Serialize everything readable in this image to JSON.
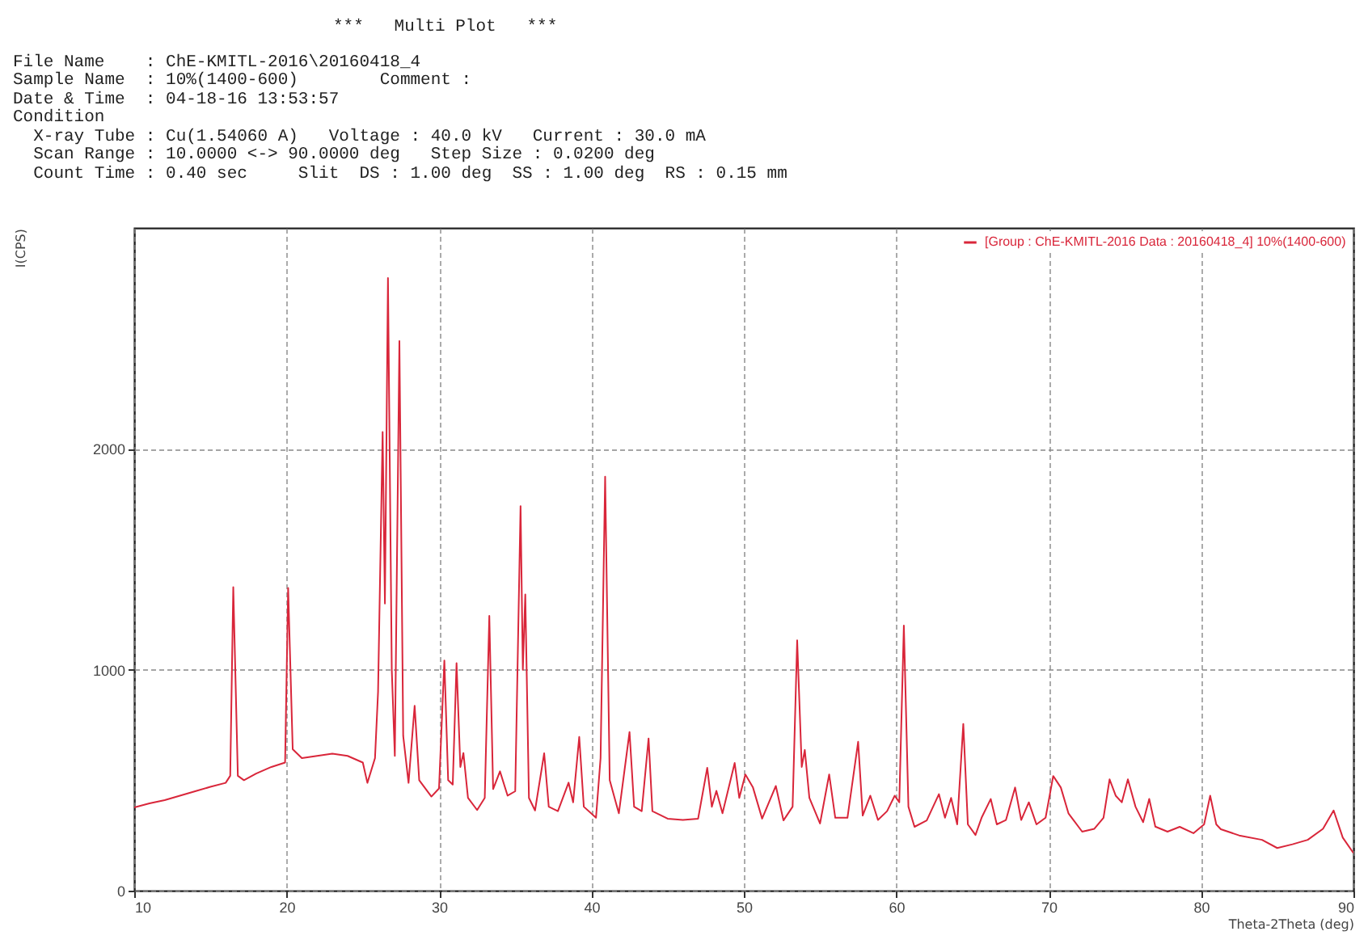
{
  "chart_data": {
    "type": "line",
    "title": "***   Multi Plot   ***",
    "xlabel": "Theta-2Theta (deg)",
    "ylabel": "I(CPS)",
    "annotations": [
      "File Name    : ChE-KMITL-2016\\20160418_4",
      "Sample Name  : 10%(1400-600)        Comment :",
      "Date & Time  : 04-18-16 13:53:57",
      "Condition",
      "  X-ray Tube : Cu(1.54060 A)   Voltage : 40.0 kV   Current : 30.0 mA",
      "  Scan Range : 10.0000 <-> 90.0000 deg   Step Size : 0.0200 deg",
      "  Count Time : 0.40 sec     Slit  DS : 1.00 deg  SS : 1.00 deg  RS : 0.15 mm"
    ],
    "x": [
      10,
      11,
      12,
      13,
      14,
      15,
      16,
      16.3,
      16.5,
      16.8,
      17.2,
      18,
      19,
      19.9,
      20.1,
      20.4,
      21,
      22,
      23,
      24,
      25,
      25.3,
      25.8,
      26.0,
      26.3,
      26.45,
      26.65,
      26.9,
      27.1,
      27.4,
      27.65,
      28.0,
      28.4,
      28.7,
      29.5,
      30.0,
      30.35,
      30.6,
      30.9,
      31.15,
      31.4,
      31.6,
      31.9,
      32.5,
      33.0,
      33.3,
      33.55,
      34.0,
      34.5,
      35.0,
      35.35,
      35.5,
      35.66,
      35.9,
      36.3,
      36.9,
      37.2,
      37.8,
      38.5,
      38.8,
      39.2,
      39.5,
      40.3,
      40.6,
      40.9,
      41.2,
      41.8,
      42.5,
      42.8,
      43.3,
      43.75,
      44.0,
      45,
      46,
      47,
      47.6,
      47.9,
      48.2,
      48.6,
      49.4,
      49.7,
      50.1,
      50.6,
      51.2,
      52.1,
      52.6,
      53.2,
      53.5,
      53.8,
      54.0,
      54.3,
      55.0,
      55.6,
      56.0,
      56.8,
      57.5,
      57.8,
      58.3,
      58.8,
      59.4,
      59.9,
      60.2,
      60.5,
      60.8,
      61.2,
      62,
      62.8,
      63.2,
      63.6,
      64.0,
      64.4,
      64.7,
      65.2,
      65.6,
      66.2,
      66.6,
      67.2,
      67.8,
      68.2,
      68.7,
      69.2,
      69.8,
      70.3,
      70.8,
      71.3,
      72.2,
      73,
      73.6,
      74.0,
      74.4,
      74.8,
      75.2,
      75.7,
      76.2,
      76.6,
      77.0,
      77.8,
      78.6,
      79.5,
      80.2,
      80.6,
      81.0,
      81.3,
      82.5,
      84,
      85,
      86,
      87,
      88,
      88.7,
      89.3,
      90
    ],
    "series": [
      {
        "name": "[Group : ChE-KMITL-2016 Data : 20160418_4] 10%(1400-600)",
        "color": "#d9263a",
        "values": [
          377,
          395,
          410,
          430,
          450,
          470,
          488,
          520,
          1374,
          520,
          500,
          530,
          560,
          580,
          1370,
          640,
          600,
          610,
          620,
          610,
          580,
          488,
          600,
          900,
          2076,
          1300,
          2773,
          1000,
          610,
          2488,
          700,
          488,
          837,
          500,
          426,
          463,
          1042,
          500,
          480,
          1030,
          560,
          623,
          420,
          365,
          420,
          1244,
          460,
          540,
          430,
          450,
          1741,
          1000,
          1341,
          420,
          363,
          622,
          380,
          360,
          489,
          400,
          696,
          380,
          330,
          600,
          1874,
          500,
          350,
          718,
          380,
          360,
          689,
          360,
          326,
          320,
          326,
          556,
          380,
          452,
          350,
          578,
          420,
          526,
          467,
          326,
          474,
          318,
          380,
          1133,
          560,
          637,
          420,
          304,
          526,
          330,
          330,
          674,
          340,
          430,
          320,
          360,
          430,
          400,
          1200,
          380,
          289,
          318,
          437,
          330,
          420,
          300,
          755,
          300,
          252,
          330,
          415,
          300,
          320,
          467,
          320,
          400,
          300,
          330,
          519,
          467,
          350,
          267,
          280,
          330,
          504,
          430,
          400,
          504,
          380,
          310,
          415,
          290,
          267,
          289,
          260,
          300,
          430,
          300,
          278,
          250,
          230,
          193,
          210,
          230,
          280,
          363,
          240,
          170
        ]
      }
    ],
    "xlim": [
      10,
      90
    ],
    "xticks": [
      10,
      20,
      30,
      40,
      50,
      60,
      70,
      80,
      90
    ],
    "ylim": [
      0,
      3000
    ],
    "yticks": [
      0,
      1000,
      2000
    ],
    "grid": true,
    "legend": "top right"
  }
}
